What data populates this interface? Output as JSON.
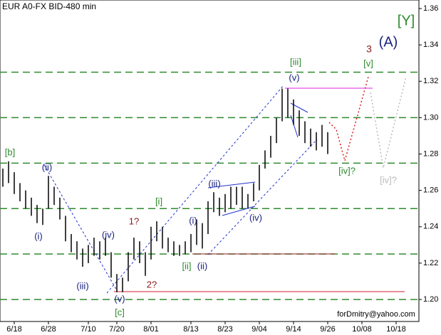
{
  "chart_data": {
    "type": "ohlc",
    "title": "EUR A0-FX BID-480 min",
    "footer": "forDmitry@yahoo.com",
    "categories": [
      null,
      null,
      "6/18",
      null,
      null,
      null,
      null,
      null,
      "6/28",
      null,
      null,
      null,
      null,
      null,
      null,
      "7/10",
      null,
      null,
      null,
      null,
      "7/20",
      null,
      null,
      null,
      null,
      null,
      "8/01",
      null,
      null,
      null,
      null,
      null,
      null,
      "8/13",
      null,
      null,
      null,
      null,
      null,
      "8/23",
      null,
      null,
      null,
      null,
      null,
      "9/04",
      null,
      null,
      null,
      null,
      null,
      "9/14",
      null,
      null,
      null,
      null,
      null,
      "9/26",
      null,
      null,
      null,
      null,
      null,
      "10/08",
      null,
      null,
      null,
      null,
      null,
      "10/18",
      null,
      null,
      null
    ],
    "series": [
      {
        "color": "#000000",
        "high": [
          1.272,
          1.276,
          1.27,
          1.264,
          1.26,
          1.256,
          1.252,
          1.25,
          1.268,
          1.262,
          1.256,
          1.246,
          1.236,
          1.232,
          1.228,
          1.23,
          1.234,
          1.232,
          1.234,
          1.226,
          1.214,
          1.212,
          1.226,
          1.234,
          1.232,
          1.226,
          1.24,
          1.243,
          1.24,
          1.234,
          1.232,
          1.23,
          1.232,
          1.236,
          1.244,
          1.242,
          1.254,
          1.259,
          1.256,
          1.258,
          1.262,
          1.262,
          1.262,
          1.258,
          1.264,
          1.274,
          1.282,
          1.29,
          1.3,
          1.316,
          1.316,
          1.31,
          1.304,
          1.298,
          1.294,
          1.292,
          1.296,
          1.292,
          null,
          null,
          null,
          null,
          null,
          null,
          null,
          null,
          null,
          null,
          null,
          null,
          null,
          null,
          null
        ],
        "low": [
          1.262,
          1.264,
          1.258,
          1.254,
          1.25,
          1.246,
          1.242,
          1.241,
          1.25,
          1.252,
          1.244,
          1.232,
          1.226,
          1.222,
          1.218,
          1.22,
          1.224,
          1.222,
          1.224,
          1.212,
          1.204,
          1.204,
          1.21,
          1.222,
          1.22,
          1.213,
          1.222,
          1.232,
          1.228,
          1.226,
          1.224,
          1.224,
          1.225,
          1.226,
          1.23,
          1.228,
          1.236,
          1.248,
          1.246,
          1.248,
          1.25,
          1.252,
          1.25,
          1.25,
          1.254,
          1.26,
          1.272,
          1.278,
          1.286,
          1.298,
          1.3,
          1.296,
          1.29,
          1.286,
          1.284,
          1.282,
          1.284,
          1.28,
          null,
          null,
          null,
          null,
          null,
          null,
          null,
          null,
          null,
          null,
          null,
          null,
          null,
          null,
          null
        ]
      }
    ],
    "levels": [
      1.325,
      1.3,
      1.275,
      1.25,
      1.225,
      1.2
    ],
    "level_color": "#2e8b2e",
    "ylim": [
      1.1879,
      1.3647
    ],
    "yticks": [
      1.36,
      1.34,
      1.32,
      {
        "value": 1.3,
        "label": "1.30"
      },
      1.28,
      1.26,
      1.24,
      1.22,
      {
        "value": 1.2,
        "label": "1.20"
      }
    ],
    "annotations": [
      "[Y]",
      "(A)",
      "3",
      "[iii]",
      "(v)",
      "[v]",
      "[b]",
      "(ii)",
      "(i)",
      "(iii)",
      "(iv)",
      "(v)",
      "[c]",
      "1?",
      "2?",
      "[i]",
      "(i)",
      "[ii]",
      "(ii)",
      "(iii)",
      "(iv)",
      "[iv]?",
      "[iv]?"
    ]
  }
}
